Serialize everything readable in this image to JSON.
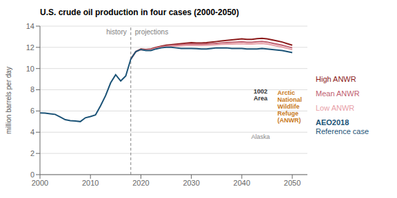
{
  "chart_data": {
    "type": "line",
    "title": "U.S. crude oil production in four cases (2000-2050)",
    "ylabel": "million barrels per day",
    "xlim": [
      2000,
      2053
    ],
    "xticks": [
      2000,
      2010,
      2020,
      2030,
      2040,
      2050
    ],
    "ylim": [
      0,
      14
    ],
    "yticks": [
      0,
      2,
      4,
      6,
      8,
      10,
      12,
      14
    ],
    "grid": true,
    "legend": "right",
    "split": {
      "x": 2018,
      "labels": [
        "history",
        "projections"
      ]
    },
    "annotations": [
      {
        "text": "1002\nArea",
        "color": "#333333"
      },
      {
        "text": "Alaska",
        "color": "#888888"
      },
      {
        "text": "Arctic\nNational\nWildlife\nRefuge\n(ANWR)",
        "color": "#C87820"
      }
    ],
    "series": [
      {
        "name": "High ANWR",
        "color": "#8B1A1A",
        "x": [
          2018,
          2019,
          2020,
          2021,
          2022,
          2023,
          2024,
          2025,
          2026,
          2027,
          2028,
          2029,
          2030,
          2031,
          2032,
          2033,
          2034,
          2035,
          2036,
          2037,
          2038,
          2039,
          2040,
          2041,
          2042,
          2043,
          2044,
          2045,
          2046,
          2047,
          2048,
          2049,
          2050
        ],
        "values": [
          10.9,
          11.6,
          11.85,
          11.8,
          11.85,
          12.0,
          12.1,
          12.2,
          12.25,
          12.3,
          12.35,
          12.4,
          12.45,
          12.42,
          12.42,
          12.45,
          12.5,
          12.55,
          12.6,
          12.65,
          12.7,
          12.75,
          12.8,
          12.75,
          12.75,
          12.82,
          12.85,
          12.8,
          12.7,
          12.6,
          12.5,
          12.35,
          12.2
        ]
      },
      {
        "name": "Mean ANWR",
        "color": "#C06070",
        "x": [
          2018,
          2019,
          2020,
          2021,
          2022,
          2023,
          2024,
          2025,
          2026,
          2027,
          2028,
          2029,
          2030,
          2031,
          2032,
          2033,
          2034,
          2035,
          2036,
          2037,
          2038,
          2039,
          2040,
          2041,
          2042,
          2043,
          2044,
          2045,
          2046,
          2047,
          2048,
          2049,
          2050
        ],
        "values": [
          10.9,
          11.6,
          11.8,
          11.75,
          11.8,
          11.95,
          12.05,
          12.12,
          12.18,
          12.22,
          12.25,
          12.3,
          12.32,
          12.3,
          12.3,
          12.32,
          12.35,
          12.38,
          12.42,
          12.45,
          12.48,
          12.5,
          12.52,
          12.48,
          12.48,
          12.52,
          12.55,
          12.5,
          12.4,
          12.3,
          12.2,
          12.08,
          11.95
        ]
      },
      {
        "name": "Low ANWR",
        "color": "#E8A0A8",
        "x": [
          2018,
          2019,
          2020,
          2021,
          2022,
          2023,
          2024,
          2025,
          2026,
          2027,
          2028,
          2029,
          2030,
          2031,
          2032,
          2033,
          2034,
          2035,
          2036,
          2037,
          2038,
          2039,
          2040,
          2041,
          2042,
          2043,
          2044,
          2045,
          2046,
          2047,
          2048,
          2049,
          2050
        ],
        "values": [
          10.9,
          11.6,
          11.78,
          11.73,
          11.77,
          11.9,
          11.98,
          12.05,
          12.1,
          12.12,
          12.15,
          12.18,
          12.2,
          12.18,
          12.18,
          12.2,
          12.22,
          12.25,
          12.28,
          12.3,
          12.32,
          12.33,
          12.34,
          12.32,
          12.32,
          12.35,
          12.36,
          12.32,
          12.22,
          12.12,
          12.02,
          11.9,
          11.78
        ]
      },
      {
        "name": "AEO2018\nReference case",
        "color": "#1a5276",
        "x": [
          2000,
          2001,
          2002,
          2003,
          2004,
          2005,
          2006,
          2007,
          2008,
          2009,
          2010,
          2011,
          2012,
          2013,
          2014,
          2015,
          2016,
          2017,
          2018,
          2019,
          2020,
          2021,
          2022,
          2023,
          2024,
          2025,
          2026,
          2027,
          2028,
          2029,
          2030,
          2031,
          2032,
          2033,
          2034,
          2035,
          2036,
          2037,
          2038,
          2039,
          2040,
          2041,
          2042,
          2043,
          2044,
          2045,
          2046,
          2047,
          2048,
          2049,
          2050
        ],
        "values": [
          5.82,
          5.8,
          5.74,
          5.68,
          5.44,
          5.18,
          5.09,
          5.06,
          5.0,
          5.36,
          5.48,
          5.63,
          6.48,
          7.44,
          8.65,
          9.42,
          8.83,
          9.3,
          10.9,
          11.6,
          11.8,
          11.7,
          11.7,
          11.85,
          11.95,
          12.0,
          12.0,
          11.95,
          11.9,
          11.9,
          11.9,
          11.87,
          11.85,
          11.85,
          11.9,
          11.95,
          11.95,
          11.95,
          11.9,
          11.9,
          11.9,
          11.85,
          11.85,
          11.85,
          11.9,
          11.85,
          11.8,
          11.75,
          11.7,
          11.6,
          11.5
        ]
      }
    ]
  }
}
